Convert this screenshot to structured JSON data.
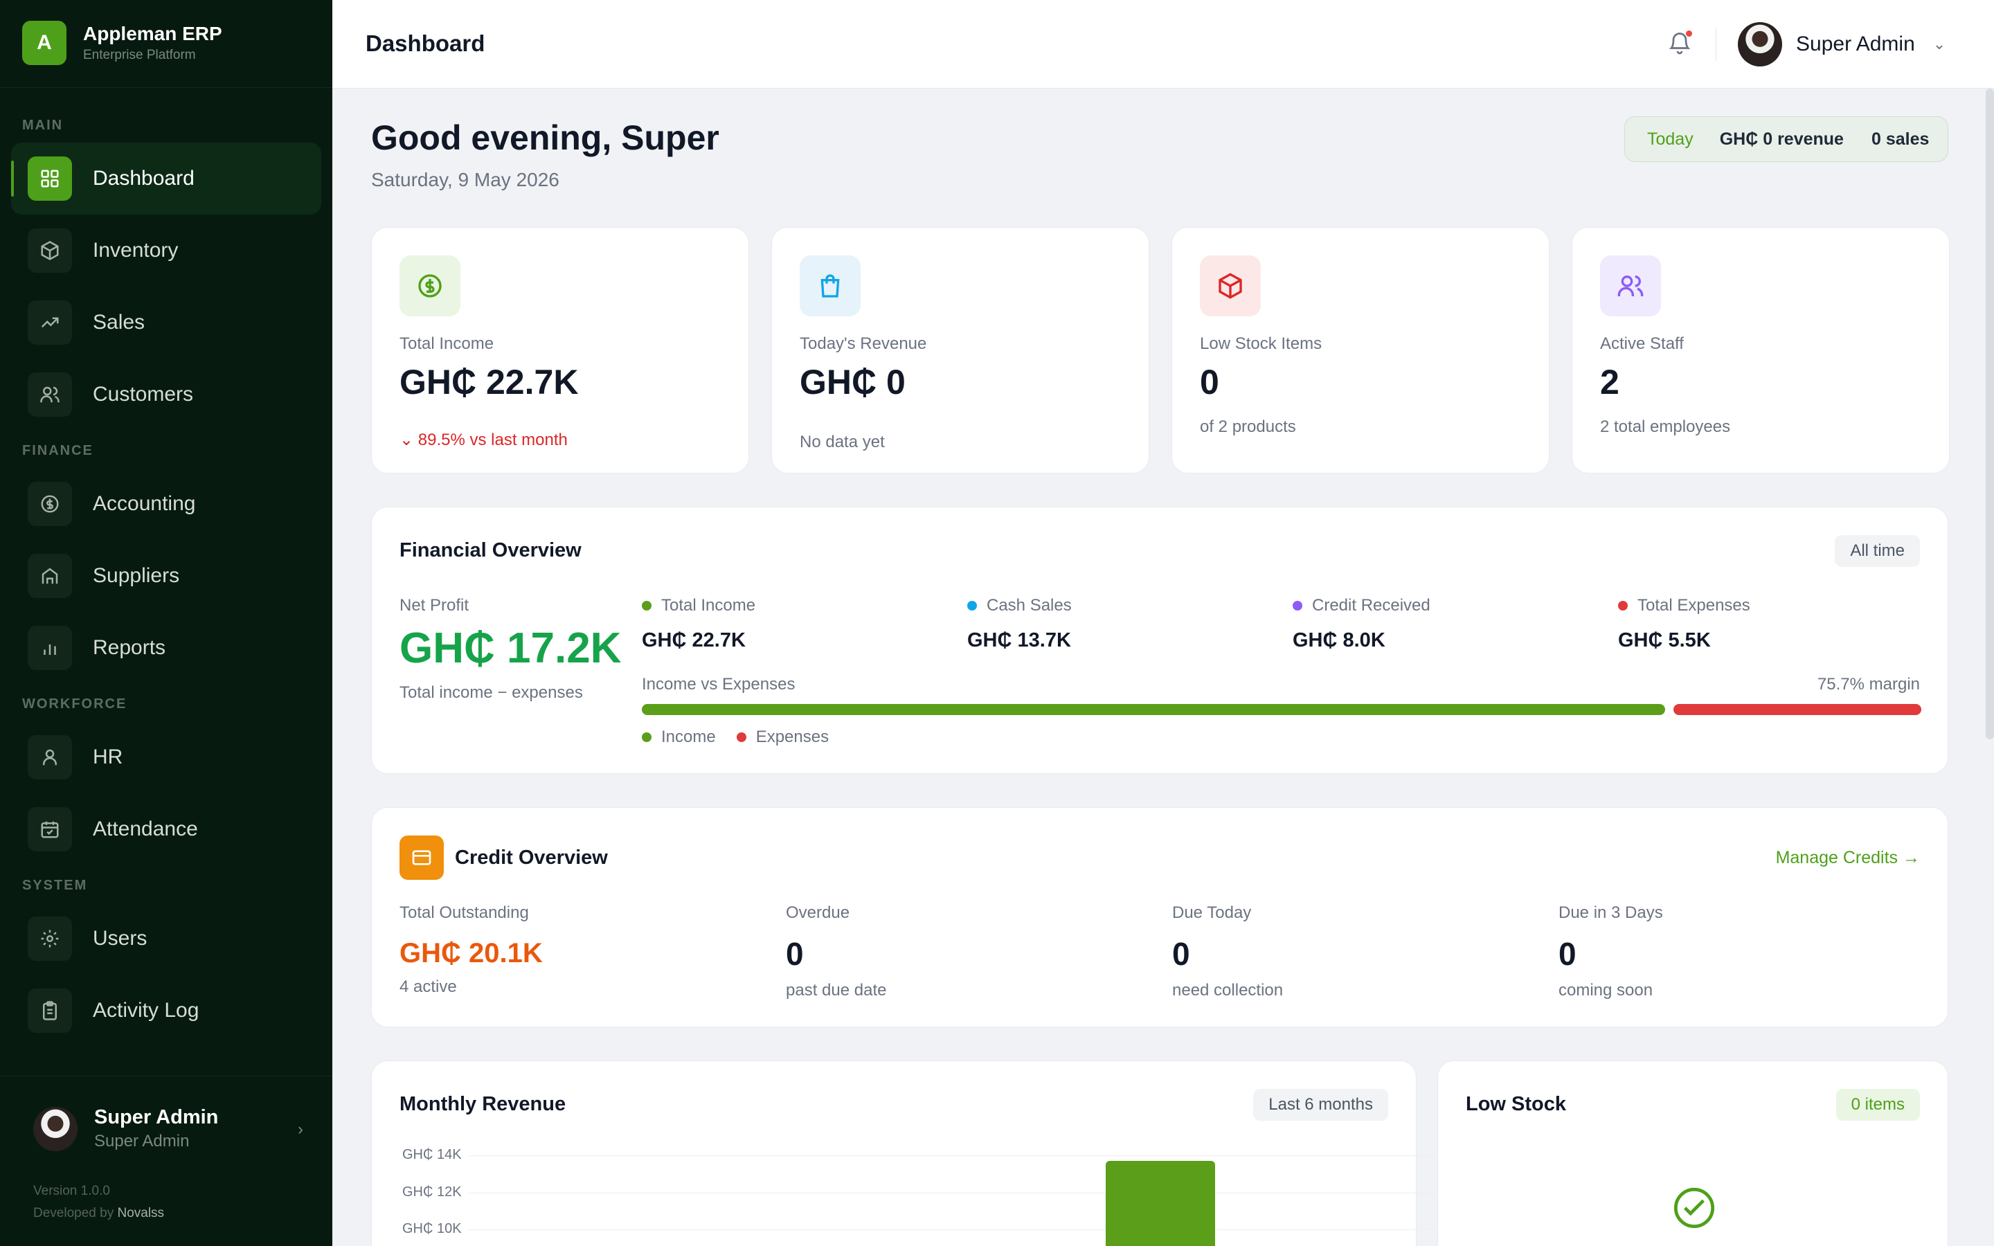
{
  "app": {
    "name": "Appleman ERP",
    "tagline": "Enterprise Platform",
    "logo_letter": "A"
  },
  "sidebar": {
    "sections": {
      "main": "MAIN",
      "finance": "FINANCE",
      "workforce": "WORKFORCE",
      "system": "SYSTEM"
    },
    "items": [
      {
        "label": "Dashboard",
        "icon": "grid-icon",
        "active": true
      },
      {
        "label": "Inventory",
        "icon": "box-icon"
      },
      {
        "label": "Sales",
        "icon": "trending-up-icon"
      },
      {
        "label": "Customers",
        "icon": "users-icon"
      },
      {
        "label": "Accounting",
        "icon": "dollar-circle-icon"
      },
      {
        "label": "Suppliers",
        "icon": "home-icon"
      },
      {
        "label": "Reports",
        "icon": "bar-chart-icon"
      },
      {
        "label": "HR",
        "icon": "user-icon"
      },
      {
        "label": "Attendance",
        "icon": "calendar-check-icon"
      },
      {
        "label": "Users",
        "icon": "gear-icon"
      },
      {
        "label": "Activity Log",
        "icon": "clipboard-icon"
      }
    ],
    "user": {
      "name": "Super Admin",
      "role": "Super Admin"
    },
    "version": "Version 1.0.0",
    "developed_by": "Developed by",
    "developer": "Novalss"
  },
  "header": {
    "title": "Dashboard",
    "user_name": "Super Admin",
    "has_notification": true
  },
  "greeting": {
    "title": "Good evening, Super",
    "date": "Saturday, 9 May 2026"
  },
  "today": {
    "label": "Today",
    "revenue": "GH₵ 0 revenue",
    "sales": "0 sales"
  },
  "stats": [
    {
      "label": "Total Income",
      "value": "GH₵ 22.7K",
      "sub": "89.5% vs last month",
      "trend_icon": "chevron-down-icon",
      "icon": "dollar-circle-icon",
      "color": "#4ea01a",
      "bg": "#eaf5e3"
    },
    {
      "label": "Today's Revenue",
      "value": "GH₵ 0",
      "sub": "No data yet",
      "icon": "shopping-bag-icon",
      "color": "#0ea5e9",
      "bg": "#e6f3fa"
    },
    {
      "label": "Low Stock Items",
      "value": "0",
      "sub": "of 2 products",
      "icon": "box-icon",
      "color": "#dc2626",
      "bg": "#fde8e8"
    },
    {
      "label": "Active Staff",
      "value": "2",
      "sub": "2 total employees",
      "icon": "users-icon",
      "color": "#8b5cf6",
      "bg": "#efeafd"
    }
  ],
  "financial": {
    "title": "Financial Overview",
    "range": "All time",
    "net_profit_label": "Net Profit",
    "net_profit": "GH₵ 17.2K",
    "net_profit_sub": "Total income − expenses",
    "metrics": [
      {
        "label": "Total Income",
        "value": "GH₵ 22.7K",
        "color": "#5b9e19"
      },
      {
        "label": "Cash Sales",
        "value": "GH₵ 13.7K",
        "color": "#0ea5e9"
      },
      {
        "label": "Credit Received",
        "value": "GH₵ 8.0K",
        "color": "#8b5cf6"
      },
      {
        "label": "Total Expenses",
        "value": "GH₵ 5.5K",
        "color": "#e03a3a"
      }
    ],
    "bar_label": "Income vs Expenses",
    "margin": "75.7% margin",
    "income_share": 0.805,
    "legend": {
      "income": "Income",
      "expenses": "Expenses"
    }
  },
  "credit": {
    "title": "Credit Overview",
    "manage": "Manage Credits →",
    "items": [
      {
        "label": "Total Outstanding",
        "value": "GH₵ 20.1K",
        "sub": "4 active"
      },
      {
        "label": "Overdue",
        "value": "0",
        "sub": "past due date"
      },
      {
        "label": "Due Today",
        "value": "0",
        "sub": "need collection"
      },
      {
        "label": "Due in 3 Days",
        "value": "0",
        "sub": "coming soon"
      }
    ]
  },
  "revenue": {
    "title": "Monthly Revenue",
    "range": "Last 6 months",
    "ticks": [
      "GH₵ 14K",
      "GH₵ 12K",
      "GH₵ 10K"
    ]
  },
  "low_stock": {
    "title": "Low Stock",
    "count": "0 items"
  },
  "chart_data": {
    "type": "bar",
    "title": "Monthly Revenue",
    "ylim": [
      10000,
      14000
    ],
    "yticks": [
      "GH₵ 14K",
      "GH₵ 12K",
      "GH₵ 10K"
    ],
    "values_visible": [
      13700
    ]
  }
}
